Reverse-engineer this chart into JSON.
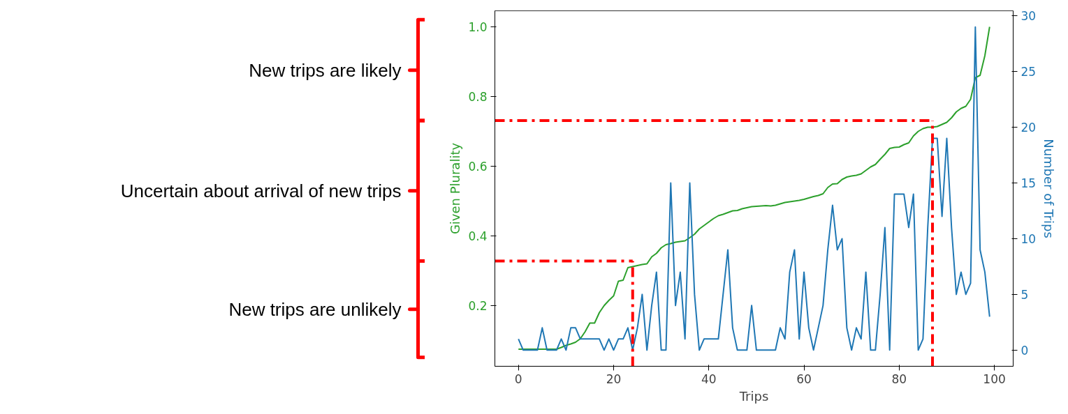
{
  "chart_data": {
    "type": "line",
    "xlabel": "Trips",
    "ylabel": "Given Plurality",
    "y2label": "Number of Trips",
    "x": [
      0,
      1,
      2,
      3,
      4,
      5,
      6,
      7,
      8,
      9,
      10,
      11,
      12,
      13,
      14,
      15,
      16,
      17,
      18,
      19,
      20,
      21,
      22,
      23,
      24,
      25,
      26,
      27,
      28,
      29,
      30,
      31,
      32,
      33,
      34,
      35,
      36,
      37,
      38,
      39,
      40,
      41,
      42,
      43,
      44,
      45,
      46,
      47,
      48,
      49,
      50,
      51,
      52,
      53,
      54,
      55,
      56,
      57,
      58,
      59,
      60,
      61,
      62,
      63,
      64,
      65,
      66,
      67,
      68,
      69,
      70,
      71,
      72,
      73,
      74,
      75,
      76,
      77,
      78,
      79,
      80,
      81,
      82,
      83,
      84,
      85,
      86,
      87,
      88,
      89,
      90,
      91,
      92,
      93,
      94,
      95,
      96,
      97,
      98,
      99
    ],
    "series": [
      {
        "color": "#2ca02c",
        "values": [
          0.075,
          0.075,
          0.075,
          0.075,
          0.075,
          0.075,
          0.075,
          0.075,
          0.075,
          0.08,
          0.086,
          0.09,
          0.095,
          0.105,
          0.125,
          0.15,
          0.15,
          0.18,
          0.2,
          0.215,
          0.228,
          0.27,
          0.273,
          0.309,
          0.312,
          0.315,
          0.318,
          0.32,
          0.34,
          0.35,
          0.366,
          0.375,
          0.378,
          0.382,
          0.384,
          0.386,
          0.395,
          0.405,
          0.42,
          0.43,
          0.44,
          0.45,
          0.458,
          0.462,
          0.467,
          0.472,
          0.473,
          0.478,
          0.481,
          0.484,
          0.485,
          0.486,
          0.487,
          0.486,
          0.488,
          0.492,
          0.496,
          0.498,
          0.5,
          0.502,
          0.505,
          0.509,
          0.513,
          0.516,
          0.521,
          0.539,
          0.549,
          0.55,
          0.562,
          0.569,
          0.572,
          0.574,
          0.578,
          0.588,
          0.598,
          0.605,
          0.62,
          0.634,
          0.651,
          0.654,
          0.655,
          0.662,
          0.667,
          0.687,
          0.7,
          0.708,
          0.712,
          0.712,
          0.714,
          0.72,
          0.726,
          0.739,
          0.756,
          0.766,
          0.772,
          0.792,
          0.854,
          0.861,
          0.917,
          1.0
        ]
      },
      {
        "color": "#1f77b4",
        "axis": "y2",
        "values": [
          1,
          0,
          0,
          0,
          0,
          2,
          0,
          0,
          0,
          1,
          0,
          2,
          2,
          1,
          1,
          1,
          1,
          1,
          0,
          1,
          0,
          1,
          1,
          2,
          0,
          2,
          5,
          0,
          4,
          7,
          0,
          0,
          15,
          4,
          7,
          1,
          15,
          5,
          0,
          1,
          1,
          1,
          1,
          5,
          9,
          2,
          0,
          0,
          0,
          4,
          0,
          0,
          0,
          0,
          0,
          2,
          1,
          7,
          9,
          1,
          7,
          2,
          0,
          2,
          4,
          9,
          13,
          9,
          10,
          2,
          0,
          2,
          1,
          7,
          0,
          0,
          5,
          11,
          0,
          14,
          14,
          14,
          11,
          14,
          0,
          1,
          11,
          19,
          19,
          12,
          19,
          11,
          5,
          7,
          5,
          6,
          29,
          9,
          7,
          3
        ]
      }
    ],
    "xlim": [
      -4.95,
      103.95
    ],
    "xticks": [
      0,
      20,
      40,
      60,
      80,
      100
    ],
    "ylim": [
      0.026,
      1.046
    ],
    "yticks": [
      0.2,
      0.4,
      0.6,
      0.8,
      {
        "value": 1,
        "label": "1.0"
      }
    ],
    "y2lim": [
      -1.45,
      30.45
    ],
    "y2ticks": [
      0,
      5,
      10,
      15,
      20,
      25,
      30
    ],
    "grid": false,
    "marker": "none",
    "line_style": "solid",
    "ref_lines": [
      {
        "axis": "y",
        "value": 0.328,
        "color": "#ff0000",
        "line_style": "dashdot"
      },
      {
        "axis": "x",
        "value": 24,
        "color": "#ff0000",
        "line_style": "dashdot"
      },
      {
        "axis": "y",
        "value": 0.731,
        "color": "#ff0000",
        "line_style": "dashdot"
      },
      {
        "axis": "x",
        "value": 87,
        "color": "#ff0000",
        "line_style": "dashdot"
      }
    ],
    "annotations": [
      "New trips are likely",
      "Uncertain about arrival of new trips",
      "New trips are unlikely"
    ]
  }
}
